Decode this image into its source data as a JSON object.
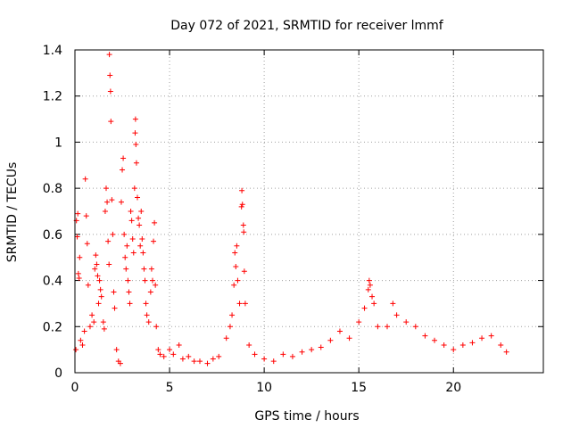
{
  "chart_data": {
    "type": "scatter",
    "title": "Day 072 of 2021, SRMTID for receiver lmmf",
    "xlabel": "GPS time / hours",
    "ylabel": "SRMTID / TECUs",
    "xlim": [
      0,
      24.75
    ],
    "ylim": [
      0,
      1.4
    ],
    "xticks": [
      "0",
      "5",
      "10",
      "15",
      "20"
    ],
    "yticks": [
      "0",
      "0.2",
      "0.4",
      "0.6",
      "0.8",
      "1",
      "1.2",
      "1.4"
    ],
    "grid": true,
    "marker": "+",
    "color": "#ff0000",
    "series": [
      {
        "name": "SRMTID",
        "points": [
          [
            0.05,
            0.1
          ],
          [
            0.08,
            0.66
          ],
          [
            0.12,
            0.59
          ],
          [
            0.15,
            0.69
          ],
          [
            0.18,
            0.43
          ],
          [
            0.22,
            0.41
          ],
          [
            0.25,
            0.5
          ],
          [
            0.3,
            0.14
          ],
          [
            0.4,
            0.12
          ],
          [
            0.5,
            0.18
          ],
          [
            0.55,
            0.84
          ],
          [
            0.6,
            0.68
          ],
          [
            0.65,
            0.56
          ],
          [
            0.7,
            0.38
          ],
          [
            0.8,
            0.2
          ],
          [
            0.9,
            0.25
          ],
          [
            1.0,
            0.22
          ],
          [
            1.05,
            0.45
          ],
          [
            1.1,
            0.51
          ],
          [
            1.15,
            0.47
          ],
          [
            1.2,
            0.42
          ],
          [
            1.25,
            0.3
          ],
          [
            1.3,
            0.4
          ],
          [
            1.35,
            0.36
          ],
          [
            1.4,
            0.33
          ],
          [
            1.5,
            0.22
          ],
          [
            1.55,
            0.19
          ],
          [
            1.6,
            0.7
          ],
          [
            1.65,
            0.8
          ],
          [
            1.7,
            0.74
          ],
          [
            1.75,
            0.57
          ],
          [
            1.8,
            0.47
          ],
          [
            1.82,
            1.38
          ],
          [
            1.85,
            1.29
          ],
          [
            1.88,
            1.22
          ],
          [
            1.9,
            1.09
          ],
          [
            1.95,
            0.75
          ],
          [
            2.0,
            0.6
          ],
          [
            2.05,
            0.35
          ],
          [
            2.1,
            0.28
          ],
          [
            2.2,
            0.1
          ],
          [
            2.3,
            0.05
          ],
          [
            2.4,
            0.04
          ],
          [
            2.45,
            0.74
          ],
          [
            2.5,
            0.88
          ],
          [
            2.55,
            0.93
          ],
          [
            2.6,
            0.6
          ],
          [
            2.65,
            0.5
          ],
          [
            2.7,
            0.45
          ],
          [
            2.75,
            0.55
          ],
          [
            2.8,
            0.4
          ],
          [
            2.85,
            0.35
          ],
          [
            2.9,
            0.3
          ],
          [
            2.95,
            0.7
          ],
          [
            3.0,
            0.66
          ],
          [
            3.05,
            0.58
          ],
          [
            3.1,
            0.52
          ],
          [
            3.15,
            0.8
          ],
          [
            3.18,
            1.04
          ],
          [
            3.2,
            1.1
          ],
          [
            3.22,
            0.99
          ],
          [
            3.25,
            0.91
          ],
          [
            3.3,
            0.76
          ],
          [
            3.35,
            0.67
          ],
          [
            3.4,
            0.64
          ],
          [
            3.45,
            0.55
          ],
          [
            3.5,
            0.7
          ],
          [
            3.55,
            0.58
          ],
          [
            3.6,
            0.52
          ],
          [
            3.65,
            0.45
          ],
          [
            3.7,
            0.4
          ],
          [
            3.75,
            0.3
          ],
          [
            3.8,
            0.25
          ],
          [
            3.9,
            0.22
          ],
          [
            4.0,
            0.35
          ],
          [
            4.05,
            0.45
          ],
          [
            4.1,
            0.4
          ],
          [
            4.15,
            0.57
          ],
          [
            4.2,
            0.65
          ],
          [
            4.25,
            0.38
          ],
          [
            4.3,
            0.2
          ],
          [
            4.4,
            0.1
          ],
          [
            4.5,
            0.08
          ],
          [
            4.7,
            0.07
          ],
          [
            5.0,
            0.1
          ],
          [
            5.2,
            0.08
          ],
          [
            5.5,
            0.12
          ],
          [
            5.7,
            0.06
          ],
          [
            6.0,
            0.07
          ],
          [
            6.3,
            0.05
          ],
          [
            6.6,
            0.05
          ],
          [
            7.0,
            0.04
          ],
          [
            7.3,
            0.06
          ],
          [
            7.6,
            0.07
          ],
          [
            8.0,
            0.15
          ],
          [
            8.2,
            0.2
          ],
          [
            8.3,
            0.25
          ],
          [
            8.4,
            0.38
          ],
          [
            8.45,
            0.52
          ],
          [
            8.5,
            0.46
          ],
          [
            8.55,
            0.55
          ],
          [
            8.6,
            0.4
          ],
          [
            8.7,
            0.3
          ],
          [
            8.8,
            0.72
          ],
          [
            8.82,
            0.79
          ],
          [
            8.85,
            0.73
          ],
          [
            8.9,
            0.64
          ],
          [
            8.92,
            0.61
          ],
          [
            8.95,
            0.44
          ],
          [
            9.0,
            0.3
          ],
          [
            9.2,
            0.12
          ],
          [
            9.5,
            0.08
          ],
          [
            10.0,
            0.06
          ],
          [
            10.5,
            0.05
          ],
          [
            11.0,
            0.08
          ],
          [
            11.5,
            0.07
          ],
          [
            12.0,
            0.09
          ],
          [
            12.5,
            0.1
          ],
          [
            13.0,
            0.11
          ],
          [
            13.5,
            0.14
          ],
          [
            14.0,
            0.18
          ],
          [
            14.5,
            0.15
          ],
          [
            15.0,
            0.22
          ],
          [
            15.3,
            0.28
          ],
          [
            15.5,
            0.36
          ],
          [
            15.55,
            0.4
          ],
          [
            15.6,
            0.38
          ],
          [
            15.7,
            0.33
          ],
          [
            15.8,
            0.3
          ],
          [
            16.0,
            0.2
          ],
          [
            16.5,
            0.2
          ],
          [
            16.8,
            0.3
          ],
          [
            17.0,
            0.25
          ],
          [
            17.5,
            0.22
          ],
          [
            18.0,
            0.2
          ],
          [
            18.5,
            0.16
          ],
          [
            19.0,
            0.14
          ],
          [
            19.5,
            0.12
          ],
          [
            20.0,
            0.1
          ],
          [
            20.5,
            0.12
          ],
          [
            21.0,
            0.13
          ],
          [
            21.5,
            0.15
          ],
          [
            22.0,
            0.16
          ],
          [
            22.5,
            0.12
          ],
          [
            22.8,
            0.09
          ]
        ]
      }
    ]
  }
}
